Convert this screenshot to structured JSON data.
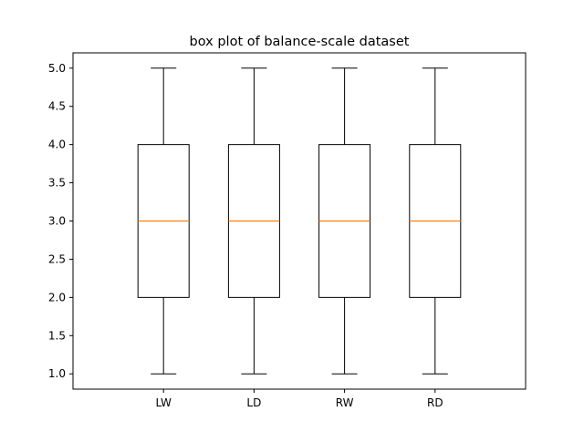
{
  "chart_data": {
    "type": "box",
    "title": "box plot of balance-scale dataset",
    "xlabel": "",
    "ylabel": "",
    "categories": [
      "LW",
      "LD",
      "RW",
      "RD"
    ],
    "boxes": [
      {
        "label": "LW",
        "min": 1.0,
        "q1": 2.0,
        "median": 3.0,
        "q3": 4.0,
        "max": 5.0
      },
      {
        "label": "LD",
        "min": 1.0,
        "q1": 2.0,
        "median": 3.0,
        "q3": 4.0,
        "max": 5.0
      },
      {
        "label": "RW",
        "min": 1.0,
        "q1": 2.0,
        "median": 3.0,
        "q3": 4.0,
        "max": 5.0
      },
      {
        "label": "RD",
        "min": 1.0,
        "q1": 2.0,
        "median": 3.0,
        "q3": 4.0,
        "max": 5.0
      }
    ],
    "yticks": [
      1.0,
      1.5,
      2.0,
      2.5,
      3.0,
      3.5,
      4.0,
      4.5,
      5.0
    ],
    "ytick_labels": [
      "1.0",
      "1.5",
      "2.0",
      "2.5",
      "3.0",
      "3.5",
      "4.0",
      "4.5",
      "5.0"
    ],
    "ylim": [
      0.8,
      5.2
    ],
    "grid": false,
    "colors": {
      "box": "#000000",
      "median": "#ff7f0e",
      "whisker": "#000000"
    }
  }
}
